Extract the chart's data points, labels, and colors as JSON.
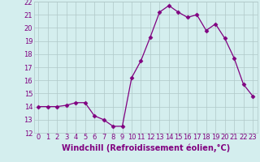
{
  "x": [
    0,
    1,
    2,
    3,
    4,
    5,
    6,
    7,
    8,
    9,
    10,
    11,
    12,
    13,
    14,
    15,
    16,
    17,
    18,
    19,
    20,
    21,
    22,
    23
  ],
  "y": [
    14.0,
    14.0,
    14.0,
    14.1,
    14.3,
    14.3,
    13.3,
    13.0,
    12.5,
    12.5,
    16.2,
    17.5,
    19.3,
    21.2,
    21.7,
    21.2,
    20.8,
    21.0,
    19.8,
    20.3,
    19.2,
    17.7,
    15.7,
    14.8
  ],
  "ylim": [
    12,
    22
  ],
  "yticks": [
    12,
    13,
    14,
    15,
    16,
    17,
    18,
    19,
    20,
    21,
    22
  ],
  "xticks": [
    0,
    1,
    2,
    3,
    4,
    5,
    6,
    7,
    8,
    9,
    10,
    11,
    12,
    13,
    14,
    15,
    16,
    17,
    18,
    19,
    20,
    21,
    22,
    23
  ],
  "xlabel": "Windchill (Refroidissement éolien,°C)",
  "line_color": "#800080",
  "marker": "D",
  "marker_size": 2.5,
  "bg_color": "#d4eeee",
  "grid_color": "#b0c8c8",
  "tick_label_fontsize": 6,
  "xlabel_fontsize": 7
}
